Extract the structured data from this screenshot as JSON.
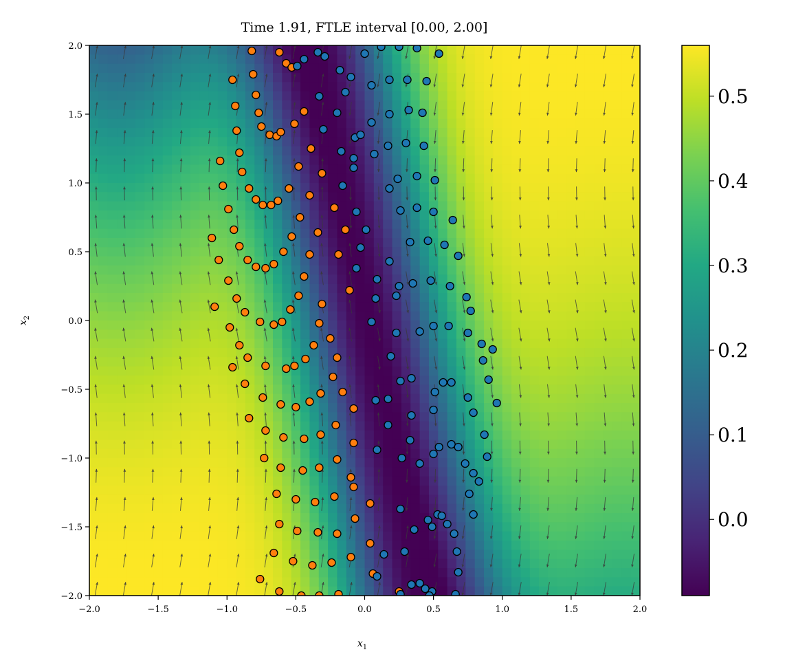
{
  "chart_data": {
    "type": "heatmap",
    "title": "Time 1.91, FTLE interval [0.00, 2.00]",
    "xlabel": "x",
    "xlabel_sub": "1",
    "ylabel": "x",
    "ylabel_sub": "2",
    "xlim": [
      -2.0,
      2.0
    ],
    "ylim": [
      -2.0,
      2.0
    ],
    "xticks": [
      -2.0,
      -1.5,
      -1.0,
      -0.5,
      0.0,
      0.5,
      1.0,
      1.5,
      2.0
    ],
    "xtick_labels": [
      "−2.0",
      "−1.5",
      "−1.0",
      "−0.5",
      "0.0",
      "0.5",
      "1.0",
      "1.5",
      "2.0"
    ],
    "yticks": [
      -2.0,
      -1.5,
      -1.0,
      -0.5,
      0.0,
      0.5,
      1.0,
      1.5,
      2.0
    ],
    "ytick_labels": [
      "−2.0",
      "−1.5",
      "−1.0",
      "−0.5",
      "0.0",
      "0.5",
      "1.0",
      "1.5",
      "2.0"
    ],
    "colormap": "viridis",
    "colorbar": {
      "vmin": -0.09,
      "vmax": 0.56,
      "ticks": [
        0.0,
        0.1,
        0.2,
        0.3,
        0.4,
        0.5
      ],
      "tick_labels": [
        "0.0",
        "0.1",
        "0.2",
        "0.3",
        "0.4",
        "0.5"
      ]
    },
    "field_model": {
      "description": "FTLE field low along a tilted ridge, high at the left and right sides",
      "ridge_center_x_top": -0.35,
      "ridge_center_x_bottom": 0.4,
      "low_value": -0.09,
      "high_value": 0.56
    },
    "quiver": {
      "color": "#3a3a3a",
      "grid_x_min": -1.95,
      "grid_x_max": 1.95,
      "grid_y_min": -1.95,
      "grid_y_max": 1.95,
      "grid_count_x": 20,
      "grid_count_y": 20
    },
    "series": [
      {
        "name": "orange particles",
        "color": "#ff7f0e",
        "edge": "#000000",
        "points": [
          [
            -0.82,
            1.96
          ],
          [
            -0.62,
            1.95
          ],
          [
            -0.57,
            1.87
          ],
          [
            -0.53,
            1.84
          ],
          [
            -0.49,
            1.85
          ],
          [
            -0.96,
            1.75
          ],
          [
            -0.81,
            1.79
          ],
          [
            -0.79,
            1.64
          ],
          [
            -0.94,
            1.56
          ],
          [
            -0.77,
            1.51
          ],
          [
            -0.75,
            1.41
          ],
          [
            -0.93,
            1.38
          ],
          [
            -0.69,
            1.35
          ],
          [
            -0.64,
            1.34
          ],
          [
            -0.61,
            1.37
          ],
          [
            -0.51,
            1.43
          ],
          [
            -0.44,
            1.52
          ],
          [
            -1.05,
            1.16
          ],
          [
            -0.91,
            1.22
          ],
          [
            -0.89,
            1.08
          ],
          [
            -0.84,
            0.96
          ],
          [
            -0.79,
            0.88
          ],
          [
            -0.74,
            0.84
          ],
          [
            -0.68,
            0.84
          ],
          [
            -0.63,
            0.87
          ],
          [
            -0.55,
            0.96
          ],
          [
            -0.48,
            1.12
          ],
          [
            -0.39,
            1.25
          ],
          [
            -0.31,
            1.07
          ],
          [
            -1.03,
            0.98
          ],
          [
            -0.99,
            0.81
          ],
          [
            -0.95,
            0.66
          ],
          [
            -0.91,
            0.54
          ],
          [
            -0.85,
            0.44
          ],
          [
            -0.79,
            0.39
          ],
          [
            -0.72,
            0.38
          ],
          [
            -0.66,
            0.41
          ],
          [
            -0.59,
            0.5
          ],
          [
            -0.53,
            0.61
          ],
          [
            -0.47,
            0.75
          ],
          [
            -0.4,
            0.91
          ],
          [
            -0.22,
            0.82
          ],
          [
            -0.14,
            0.66
          ],
          [
            -1.11,
            0.6
          ],
          [
            -1.06,
            0.44
          ],
          [
            -0.99,
            0.29
          ],
          [
            -0.93,
            0.16
          ],
          [
            -0.87,
            0.06
          ],
          [
            -0.76,
            -0.01
          ],
          [
            -0.66,
            -0.03
          ],
          [
            -0.6,
            -0.01
          ],
          [
            -0.54,
            0.08
          ],
          [
            -0.48,
            0.18
          ],
          [
            -0.44,
            0.32
          ],
          [
            -0.4,
            0.48
          ],
          [
            -0.34,
            0.64
          ],
          [
            -0.19,
            0.48
          ],
          [
            -0.11,
            0.22
          ],
          [
            -1.09,
            0.1
          ],
          [
            -0.98,
            -0.05
          ],
          [
            -0.91,
            -0.18
          ],
          [
            -0.85,
            -0.27
          ],
          [
            -0.72,
            -0.33
          ],
          [
            -0.57,
            -0.35
          ],
          [
            -0.51,
            -0.33
          ],
          [
            -0.43,
            -0.28
          ],
          [
            -0.37,
            -0.18
          ],
          [
            -0.33,
            -0.02
          ],
          [
            -0.31,
            0.12
          ],
          [
            -0.25,
            -0.13
          ],
          [
            -0.2,
            -0.27
          ],
          [
            -0.96,
            -0.34
          ],
          [
            -0.87,
            -0.46
          ],
          [
            -0.84,
            -0.71
          ],
          [
            -0.74,
            -0.56
          ],
          [
            -0.61,
            -0.61
          ],
          [
            -0.5,
            -0.63
          ],
          [
            -0.4,
            -0.59
          ],
          [
            -0.32,
            -0.53
          ],
          [
            -0.23,
            -0.41
          ],
          [
            -0.16,
            -0.52
          ],
          [
            -0.08,
            -0.64
          ],
          [
            -0.72,
            -0.8
          ],
          [
            -0.59,
            -0.85
          ],
          [
            -0.44,
            -0.86
          ],
          [
            -0.32,
            -0.83
          ],
          [
            -0.21,
            -0.76
          ],
          [
            -0.08,
            -0.89
          ],
          [
            -0.73,
            -1.0
          ],
          [
            -0.61,
            -1.07
          ],
          [
            -0.45,
            -1.09
          ],
          [
            -0.33,
            -1.07
          ],
          [
            -0.2,
            -1.01
          ],
          [
            -0.1,
            -1.14
          ],
          [
            -0.64,
            -1.26
          ],
          [
            -0.5,
            -1.3
          ],
          [
            -0.36,
            -1.32
          ],
          [
            -0.22,
            -1.28
          ],
          [
            -0.08,
            -1.21
          ],
          [
            0.04,
            -1.33
          ],
          [
            -0.62,
            -1.48
          ],
          [
            -0.49,
            -1.53
          ],
          [
            -0.34,
            -1.54
          ],
          [
            -0.2,
            -1.55
          ],
          [
            -0.07,
            -1.44
          ],
          [
            0.04,
            -1.62
          ],
          [
            -0.66,
            -1.69
          ],
          [
            -0.52,
            -1.75
          ],
          [
            -0.38,
            -1.78
          ],
          [
            -0.24,
            -1.76
          ],
          [
            -0.1,
            -1.72
          ],
          [
            0.06,
            -1.84
          ],
          [
            -0.76,
            -1.88
          ],
          [
            -0.62,
            -1.97
          ],
          [
            -0.46,
            -2.0
          ],
          [
            -0.33,
            -2.0
          ],
          [
            -0.19,
            -1.99
          ],
          [
            0.25,
            -1.97
          ]
        ]
      },
      {
        "name": "blue particles",
        "color": "#1f77b4",
        "edge": "#000000",
        "points": [
          [
            -0.34,
            1.95
          ],
          [
            -0.44,
            1.9
          ],
          [
            -0.49,
            1.85
          ],
          [
            -0.29,
            1.92
          ],
          [
            -0.18,
            1.82
          ],
          [
            -0.14,
            1.66
          ],
          [
            -0.1,
            1.77
          ],
          [
            0.0,
            1.94
          ],
          [
            0.12,
            1.99
          ],
          [
            0.25,
            1.99
          ],
          [
            0.38,
            1.98
          ],
          [
            0.54,
            1.94
          ],
          [
            -0.33,
            1.63
          ],
          [
            -0.2,
            1.51
          ],
          [
            -0.3,
            1.39
          ],
          [
            -0.17,
            1.23
          ],
          [
            -0.08,
            1.18
          ],
          [
            -0.07,
            1.33
          ],
          [
            0.05,
            1.71
          ],
          [
            0.18,
            1.75
          ],
          [
            0.31,
            1.75
          ],
          [
            0.45,
            1.74
          ],
          [
            0.05,
            1.44
          ],
          [
            0.18,
            1.5
          ],
          [
            0.32,
            1.53
          ],
          [
            0.42,
            1.51
          ],
          [
            -0.03,
            1.35
          ],
          [
            0.07,
            1.21
          ],
          [
            0.17,
            1.27
          ],
          [
            0.3,
            1.29
          ],
          [
            0.43,
            1.27
          ],
          [
            -0.16,
            0.98
          ],
          [
            -0.08,
            1.11
          ],
          [
            -0.06,
            0.79
          ],
          [
            0.01,
            0.66
          ],
          [
            0.18,
            0.96
          ],
          [
            0.24,
            1.03
          ],
          [
            0.38,
            1.05
          ],
          [
            0.51,
            1.02
          ],
          [
            0.26,
            0.8
          ],
          [
            0.38,
            0.82
          ],
          [
            0.5,
            0.79
          ],
          [
            0.64,
            0.73
          ],
          [
            -0.03,
            0.53
          ],
          [
            -0.06,
            0.38
          ],
          [
            0.18,
            0.43
          ],
          [
            0.33,
            0.57
          ],
          [
            0.46,
            0.58
          ],
          [
            0.58,
            0.55
          ],
          [
            0.68,
            0.47
          ],
          [
            0.09,
            0.3
          ],
          [
            0.25,
            0.25
          ],
          [
            0.35,
            0.27
          ],
          [
            0.48,
            0.29
          ],
          [
            0.62,
            0.25
          ],
          [
            0.74,
            0.17
          ],
          [
            0.08,
            0.16
          ],
          [
            0.23,
            0.18
          ],
          [
            0.77,
            0.07
          ],
          [
            0.05,
            -0.01
          ],
          [
            0.23,
            -0.09
          ],
          [
            0.4,
            -0.08
          ],
          [
            0.5,
            -0.04
          ],
          [
            0.61,
            -0.04
          ],
          [
            0.75,
            -0.09
          ],
          [
            0.85,
            -0.17
          ],
          [
            0.93,
            -0.21
          ],
          [
            0.19,
            -0.26
          ],
          [
            0.26,
            -0.44
          ],
          [
            0.34,
            -0.42
          ],
          [
            0.51,
            -0.52
          ],
          [
            0.57,
            -0.45
          ],
          [
            0.63,
            -0.45
          ],
          [
            0.75,
            -0.56
          ],
          [
            0.86,
            -0.29
          ],
          [
            0.9,
            -0.43
          ],
          [
            0.96,
            -0.6
          ],
          [
            0.08,
            -0.58
          ],
          [
            0.17,
            -0.57
          ],
          [
            0.34,
            -0.69
          ],
          [
            0.5,
            -0.65
          ],
          [
            0.79,
            -0.67
          ],
          [
            0.87,
            -0.83
          ],
          [
            0.17,
            -0.76
          ],
          [
            0.33,
            -0.87
          ],
          [
            0.54,
            -0.92
          ],
          [
            0.5,
            -0.97
          ],
          [
            0.63,
            -0.9
          ],
          [
            0.68,
            -0.92
          ],
          [
            0.73,
            -1.04
          ],
          [
            0.89,
            -0.99
          ],
          [
            0.09,
            -0.94
          ],
          [
            0.27,
            -1.0
          ],
          [
            0.4,
            -1.04
          ],
          [
            0.79,
            -1.11
          ],
          [
            0.83,
            -1.17
          ],
          [
            0.76,
            -1.26
          ],
          [
            0.46,
            -1.45
          ],
          [
            0.53,
            -1.41
          ],
          [
            0.56,
            -1.42
          ],
          [
            0.6,
            -1.48
          ],
          [
            0.65,
            -1.55
          ],
          [
            0.67,
            -1.68
          ],
          [
            0.68,
            -1.83
          ],
          [
            0.49,
            -1.5
          ],
          [
            0.36,
            -1.52
          ],
          [
            0.29,
            -1.68
          ],
          [
            0.14,
            -1.7
          ],
          [
            0.26,
            -1.37
          ],
          [
            0.34,
            -1.92
          ],
          [
            0.4,
            -1.91
          ],
          [
            0.44,
            -1.95
          ],
          [
            0.49,
            -1.97
          ],
          [
            0.66,
            -1.99
          ],
          [
            0.79,
            -1.41
          ],
          [
            0.09,
            -1.86
          ],
          [
            0.26,
            -1.99
          ],
          [
            0.47,
            -2.0
          ]
        ]
      }
    ]
  }
}
